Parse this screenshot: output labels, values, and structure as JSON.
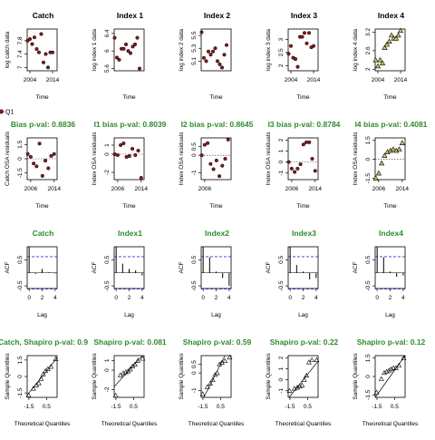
{
  "figure": {
    "legend_label": "Q1",
    "colors": {
      "black": "#000000",
      "green": "#2e8b2e",
      "fleet_fill": "#8b1a1a",
      "survey_fill": "#c8c864",
      "sig_line": "#3333cc",
      "ref": "#333333"
    }
  },
  "chart_data": [
    {
      "panel": "row1-1",
      "type": "scatter",
      "title": "Catch",
      "xlabel": "Time",
      "ylabel": "log catch data",
      "xlim": [
        2002.8,
        2016
      ],
      "ylim": [
        6.9,
        8.15
      ],
      "xticks": [
        2004,
        2014
      ],
      "yticks": [
        7.0,
        7.4,
        7.8
      ],
      "marker": "fleet",
      "x": [
        2003,
        2004,
        2005,
        2006,
        2007,
        2008,
        2009,
        2010,
        2011,
        2012,
        2013,
        2014
      ],
      "y": [
        7.8,
        7.85,
        7.7,
        7.9,
        7.55,
        7.45,
        8.0,
        7.15,
        7.4,
        7.0,
        7.45,
        7.45
      ]
    },
    {
      "panel": "row1-2",
      "type": "scatter",
      "title": "Index 1",
      "xlabel": "Time",
      "ylabel": "log index 1 data",
      "xlim": [
        2002.8,
        2016
      ],
      "ylim": [
        5.55,
        6.5
      ],
      "xticks": [],
      "yticks": [
        5.6,
        6.0,
        6.4
      ],
      "marker": "fleet",
      "x": [
        2003,
        2004,
        2005,
        2006,
        2007,
        2008,
        2009,
        2010,
        2011,
        2012,
        2013,
        2014
      ],
      "y": [
        6.3,
        5.85,
        5.8,
        6.05,
        6.05,
        6.15,
        6.0,
        5.95,
        6.1,
        6.15,
        6.3,
        5.6
      ]
    },
    {
      "panel": "row1-3",
      "type": "scatter",
      "title": "Index 2",
      "xlabel": "Time",
      "ylabel": "log index 2 data",
      "xlim": [
        2002.8,
        2016
      ],
      "ylim": [
        4.95,
        5.6
      ],
      "xticks": [],
      "yticks": [
        5.1,
        5.3,
        5.5
      ],
      "marker": "fleet",
      "x": [
        2003,
        2004,
        2005,
        2006,
        2007,
        2008,
        2009,
        2010,
        2011,
        2012,
        2013,
        2014
      ],
      "y": [
        5.55,
        5.15,
        5.1,
        5.25,
        5.2,
        5.25,
        5.3,
        5.1,
        5.05,
        5.0,
        5.2,
        5.35
      ]
    },
    {
      "panel": "row1-4",
      "type": "scatter",
      "title": "Index 3",
      "xlabel": "Time",
      "ylabel": "log index 3 data",
      "xlim": [
        2002.8,
        2016
      ],
      "ylim": [
        1.8,
        3.4
      ],
      "xticks": [
        2004,
        2014
      ],
      "yticks": [
        2.0,
        2.5,
        3.0
      ],
      "marker": "fleet",
      "x": [
        2003,
        2004,
        2005,
        2006,
        2007,
        2008,
        2009,
        2010,
        2011,
        2012,
        2013,
        2014
      ],
      "y": [
        2.45,
        2.75,
        2.3,
        2.25,
        1.95,
        3.1,
        3.1,
        3.25,
        2.85,
        3.25,
        2.7,
        2.75
      ]
    },
    {
      "panel": "row1-5",
      "type": "scatter",
      "title": "Index 4",
      "xlabel": "Time",
      "ylabel": "log index 4 data",
      "xlim": [
        2002.8,
        2016
      ],
      "ylim": [
        1.95,
        3.3
      ],
      "xticks": [
        2004,
        2014
      ],
      "yticks": [
        2.0,
        2.6,
        3.2
      ],
      "marker": "survey",
      "x": [
        2003,
        2004,
        2005,
        2006,
        2007,
        2008,
        2009,
        2010,
        2011,
        2012,
        2013,
        2014
      ],
      "y": [
        2.3,
        2.1,
        2.3,
        2.2,
        2.7,
        2.8,
        2.9,
        3.1,
        3.0,
        3.0,
        3.1,
        3.25
      ]
    },
    {
      "panel": "row2-1",
      "type": "scatter",
      "title": "Bias p-val: 0.8836",
      "xlabel": "Time",
      "ylabel": "Catch OSA residuals",
      "xlim": [
        2004.8,
        2015
      ],
      "ylim": [
        -2.2,
        2.2
      ],
      "xticks": [
        2006,
        2014
      ],
      "yticks": [
        -1.5,
        0,
        1.5
      ],
      "marker": "fleet",
      "ref_line": 0,
      "x": [
        2005,
        2006,
        2007,
        2008,
        2009,
        2010,
        2011,
        2012,
        2013,
        2014
      ],
      "y": [
        0.5,
        0.2,
        -0.5,
        -0.8,
        1.6,
        -1.8,
        -0.2,
        -1.0,
        0.3,
        0.5
      ]
    },
    {
      "panel": "row2-2",
      "type": "scatter",
      "title": "I1 bias p-val: 0.8039",
      "xlabel": "Time",
      "ylabel": "Index OSA residuals",
      "xlim": [
        2004.8,
        2015
      ],
      "ylim": [
        -2.8,
        1.8
      ],
      "xticks": [
        2006,
        2014
      ],
      "yticks": [
        -2,
        0,
        1
      ],
      "marker": "fleet",
      "ref_line": 0,
      "x": [
        2005,
        2006,
        2007,
        2008,
        2009,
        2010,
        2011,
        2012,
        2013,
        2014
      ],
      "y": [
        0.0,
        -0.1,
        1.0,
        1.2,
        -0.3,
        -0.2,
        0.6,
        -0.1,
        0.4,
        -2.6
      ]
    },
    {
      "panel": "row2-3",
      "type": "scatter",
      "title": "I2 bias p-val: 0.8645",
      "xlabel": "Time",
      "ylabel": "Index OSA residuals",
      "xlim": [
        2004.8,
        2015
      ],
      "ylim": [
        -1.4,
        1.0
      ],
      "xticks": [
        2006
      ],
      "yticks": [
        -1.0,
        0,
        0.5
      ],
      "marker": "fleet",
      "ref_line": 0,
      "x": [
        2005,
        2006,
        2007,
        2008,
        2009,
        2010,
        2011,
        2012,
        2013,
        2014
      ],
      "y": [
        0.0,
        0.6,
        0.7,
        -0.5,
        -0.8,
        -0.3,
        -1.2,
        -0.6,
        -0.2,
        0.9
      ]
    },
    {
      "panel": "row2-4",
      "type": "scatter",
      "title": "I3 bias p-val: 0.8784",
      "xlabel": "Time",
      "ylabel": "Index OSA residuals",
      "xlim": [
        2004.8,
        2015
      ],
      "ylim": [
        -1.6,
        2.2
      ],
      "xticks": [
        2006,
        2014
      ],
      "yticks": [
        -1,
        0,
        1,
        2
      ],
      "marker": "fleet",
      "ref_line": 0,
      "x": [
        2005,
        2006,
        2007,
        2008,
        2009,
        2010,
        2011,
        2012,
        2013,
        2014
      ],
      "y": [
        0.0,
        -0.6,
        -0.9,
        -0.6,
        -0.2,
        1.6,
        1.8,
        1.8,
        0.3,
        -0.8
      ]
    },
    {
      "panel": "row2-5",
      "type": "scatter",
      "title": "I4 bias p-val: 0.4081",
      "xlabel": "Time",
      "ylabel": "Index OSA residuals",
      "xlim": [
        2004.8,
        2015
      ],
      "ylim": [
        -1.6,
        1.7
      ],
      "xticks": [
        2006,
        2014
      ],
      "yticks": [
        -1.5,
        0,
        1.5
      ],
      "marker": "survey",
      "ref_line": 0,
      "x": [
        2005,
        2006,
        2007,
        2008,
        2009,
        2010,
        2011,
        2012,
        2013,
        2014
      ],
      "y": [
        -1.5,
        -1.1,
        -0.3,
        0.3,
        0.6,
        0.7,
        0.8,
        0.7,
        0.8,
        1.3
      ]
    },
    {
      "panel": "row3-1",
      "type": "bar",
      "title": "Catch",
      "title_color": "green",
      "xlabel": "Lag",
      "ylabel": "ACF",
      "xlim": [
        -0.3,
        4.3
      ],
      "ylim": [
        -0.6,
        1.0
      ],
      "xticks": [
        0,
        2,
        4
      ],
      "yticks": [
        -0.5,
        0.5
      ],
      "significance": 0.62,
      "lags": [
        0,
        1,
        2,
        3,
        4
      ],
      "values": [
        1.0,
        -0.05,
        0.15,
        0.02,
        -0.03
      ]
    },
    {
      "panel": "row3-2",
      "type": "bar",
      "title": "Index1",
      "title_color": "green",
      "xlabel": "Lag",
      "ylabel": "ACF",
      "xlim": [
        -0.3,
        4.3
      ],
      "ylim": [
        -0.6,
        1.0
      ],
      "xticks": [
        0,
        2,
        4
      ],
      "yticks": [
        -0.5,
        0.5
      ],
      "significance": 0.62,
      "lags": [
        0,
        1,
        2,
        3,
        4
      ],
      "values": [
        1.0,
        0.35,
        0.15,
        0.1,
        -0.1
      ]
    },
    {
      "panel": "row3-3",
      "type": "bar",
      "title": "Index2",
      "title_color": "green",
      "xlabel": "Lag",
      "ylabel": "ACF",
      "xlim": [
        -0.3,
        4.3
      ],
      "ylim": [
        -0.6,
        1.0
      ],
      "xticks": [
        0,
        2,
        4
      ],
      "yticks": [
        -0.5,
        0.5
      ],
      "significance": 0.62,
      "lags": [
        0,
        1,
        2,
        3,
        4
      ],
      "values": [
        1.0,
        0.6,
        0.05,
        -0.2,
        -0.5
      ]
    },
    {
      "panel": "row3-4",
      "type": "bar",
      "title": "Index3",
      "title_color": "green",
      "xlabel": "Lag",
      "ylabel": "ACF",
      "xlim": [
        -0.3,
        4.3
      ],
      "ylim": [
        -0.6,
        1.0
      ],
      "xticks": [
        0,
        2,
        4
      ],
      "yticks": [
        -0.5,
        0.5
      ],
      "significance": 0.62,
      "lags": [
        0,
        1,
        2,
        3,
        4
      ],
      "values": [
        1.0,
        0.3,
        0.05,
        -0.25,
        -0.2
      ]
    },
    {
      "panel": "row3-5",
      "type": "bar",
      "title": "Index4",
      "title_color": "green",
      "xlabel": "Lag",
      "ylabel": "ACF",
      "xlim": [
        -0.3,
        4.3
      ],
      "ylim": [
        -0.6,
        1.0
      ],
      "xticks": [
        0,
        2,
        4
      ],
      "yticks": [
        -0.5,
        0.5
      ],
      "significance": 0.62,
      "lags": [
        0,
        1,
        2,
        3,
        4
      ],
      "values": [
        1.0,
        0.6,
        0.05,
        -0.15,
        -0.1
      ]
    },
    {
      "panel": "row4-1",
      "type": "scatter",
      "title": "Catch, Shapiro p-val: 0.9",
      "title_color": "green",
      "xlabel": "Theoretical Quantiles",
      "ylabel": "Sample Quantiles",
      "xlim": [
        -1.7,
        1.7
      ],
      "ylim": [
        -1.9,
        1.9
      ],
      "xticks": [
        -1.5,
        0.5
      ],
      "yticks": [
        -1.5,
        0,
        1.5
      ],
      "marker": "open",
      "ref_diag": true,
      "x": [
        -1.54,
        -1.0,
        -0.66,
        -0.38,
        -0.12,
        0.12,
        0.38,
        0.66,
        1.0,
        1.54
      ],
      "y": [
        -1.7,
        -1.1,
        -0.8,
        -0.6,
        -0.2,
        0.2,
        0.5,
        0.7,
        0.9,
        1.6
      ]
    },
    {
      "panel": "row4-2",
      "type": "scatter",
      "title": "Shapiro p-val: 0.081",
      "title_color": "green",
      "xlabel": "Theoretical Quantiles",
      "ylabel": "Sample Quantiles",
      "xlim": [
        -1.7,
        1.7
      ],
      "ylim": [
        -2.8,
        1.5
      ],
      "xticks": [
        -1.5,
        0.5
      ],
      "yticks": [
        -2,
        0,
        1
      ],
      "marker": "open",
      "ref_diag": true,
      "x": [
        -1.54,
        -1.0,
        -0.66,
        -0.38,
        -0.12,
        0.12,
        0.38,
        0.66,
        1.0,
        1.54
      ],
      "y": [
        -2.6,
        -0.5,
        -0.3,
        -0.2,
        -0.1,
        0.1,
        0.4,
        0.6,
        1.0,
        1.2
      ]
    },
    {
      "panel": "row4-3",
      "type": "scatter",
      "title": "Shapiro p-val: 0.59",
      "title_color": "green",
      "xlabel": "Theoretical Quantiles",
      "ylabel": "Sample Quantiles",
      "xlim": [
        -1.7,
        1.7
      ],
      "ylim": [
        -1.4,
        1.0
      ],
      "xticks": [
        -1.5,
        0.5
      ],
      "yticks": [
        -1.0,
        0,
        0.5
      ],
      "marker": "open",
      "ref_diag": true,
      "x": [
        -1.54,
        -1.0,
        -0.66,
        -0.38,
        -0.12,
        0.12,
        0.38,
        0.66,
        1.0,
        1.54
      ],
      "y": [
        -1.2,
        -0.8,
        -0.6,
        -0.4,
        -0.1,
        0.0,
        0.5,
        0.6,
        0.7,
        0.9
      ]
    },
    {
      "panel": "row4-4",
      "type": "scatter",
      "title": "Shapiro p-val: 0.22",
      "title_color": "green",
      "xlabel": "Theoretical Quantiles",
      "ylabel": "Sample Quantiles",
      "xlim": [
        -1.7,
        1.7
      ],
      "ylim": [
        -1.6,
        2.2
      ],
      "xticks": [
        -1.5,
        0.5
      ],
      "yticks": [
        -1,
        0,
        1,
        2
      ],
      "marker": "open",
      "ref_diag": true,
      "x": [
        -1.54,
        -1.0,
        -0.66,
        -0.38,
        -0.12,
        0.12,
        0.38,
        0.66,
        1.0,
        1.54
      ],
      "y": [
        -1.0,
        -0.8,
        -0.7,
        -0.6,
        -0.5,
        0.0,
        0.4,
        1.6,
        1.8,
        1.8
      ]
    },
    {
      "panel": "row4-5",
      "type": "scatter",
      "title": "Shapiro p-val: 0.12",
      "title_color": "green",
      "xlabel": "Theoretical Quantiles",
      "ylabel": "Sample Quantiles",
      "xlim": [
        -1.7,
        1.7
      ],
      "ylim": [
        -1.7,
        1.7
      ],
      "xticks": [
        -1.5,
        0.5
      ],
      "yticks": [
        -1.5,
        0,
        1.5
      ],
      "marker": "open",
      "ref_diag": true,
      "x": [
        -1.54,
        -1.0,
        -0.66,
        -0.38,
        -0.12,
        0.12,
        0.38,
        0.66,
        1.0,
        1.54
      ],
      "y": [
        -1.3,
        -0.2,
        0.3,
        0.4,
        0.5,
        0.6,
        0.7,
        0.7,
        0.9,
        1.5
      ]
    }
  ]
}
